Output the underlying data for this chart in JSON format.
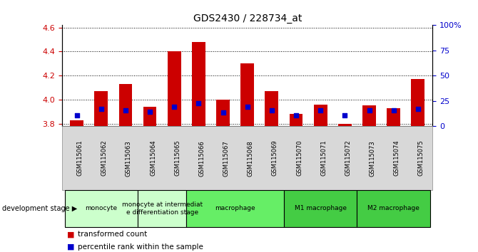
{
  "title": "GDS2430 / 228734_at",
  "samples": [
    "GSM115061",
    "GSM115062",
    "GSM115063",
    "GSM115064",
    "GSM115065",
    "GSM115066",
    "GSM115067",
    "GSM115068",
    "GSM115069",
    "GSM115070",
    "GSM115071",
    "GSM115072",
    "GSM115073",
    "GSM115074",
    "GSM115075"
  ],
  "red_values": [
    3.83,
    4.07,
    4.13,
    3.94,
    4.4,
    4.48,
    4.0,
    4.3,
    4.07,
    3.88,
    3.96,
    3.8,
    3.95,
    3.93,
    4.17
  ],
  "blue_values": [
    3.87,
    3.92,
    3.91,
    3.9,
    3.94,
    3.97,
    3.89,
    3.94,
    3.91,
    3.87,
    3.91,
    3.87,
    3.91,
    3.91,
    3.92
  ],
  "ylim_left": [
    3.78,
    4.62
  ],
  "ylim_right": [
    0,
    100
  ],
  "yticks_left": [
    3.8,
    4.0,
    4.2,
    4.4,
    4.6
  ],
  "yticks_right": [
    0,
    25,
    50,
    75,
    100
  ],
  "ytick_labels_right": [
    "0",
    "25",
    "50",
    "75",
    "100%"
  ],
  "left_color": "#cc0000",
  "right_color": "#0000cc",
  "bar_base": 3.78,
  "groups": [
    {
      "label": "monocyte",
      "start": 0,
      "end": 3,
      "color": "#ccffcc"
    },
    {
      "label": "monocyte at intermediat\ne differentiation stage",
      "start": 3,
      "end": 5,
      "color": "#ccffcc"
    },
    {
      "label": "macrophage",
      "start": 5,
      "end": 9,
      "color": "#66ee66"
    },
    {
      "label": "M1 macrophage",
      "start": 9,
      "end": 12,
      "color": "#44cc44"
    },
    {
      "label": "M2 macrophage",
      "start": 12,
      "end": 15,
      "color": "#44cc44"
    }
  ],
  "group_colors": [
    "#ccffcc",
    "#ccffcc",
    "#66ee66",
    "#44cc44",
    "#44cc44"
  ],
  "xlabel_dev": "development stage",
  "legend_red": "transformed count",
  "legend_blue": "percentile rank within the sample",
  "tick_label_color_left": "#cc0000",
  "tick_label_color_right": "#0000cc",
  "bg_color": "#ffffff",
  "plot_bg": "#ffffff",
  "bar_width": 0.55,
  "blue_marker_size": 20
}
